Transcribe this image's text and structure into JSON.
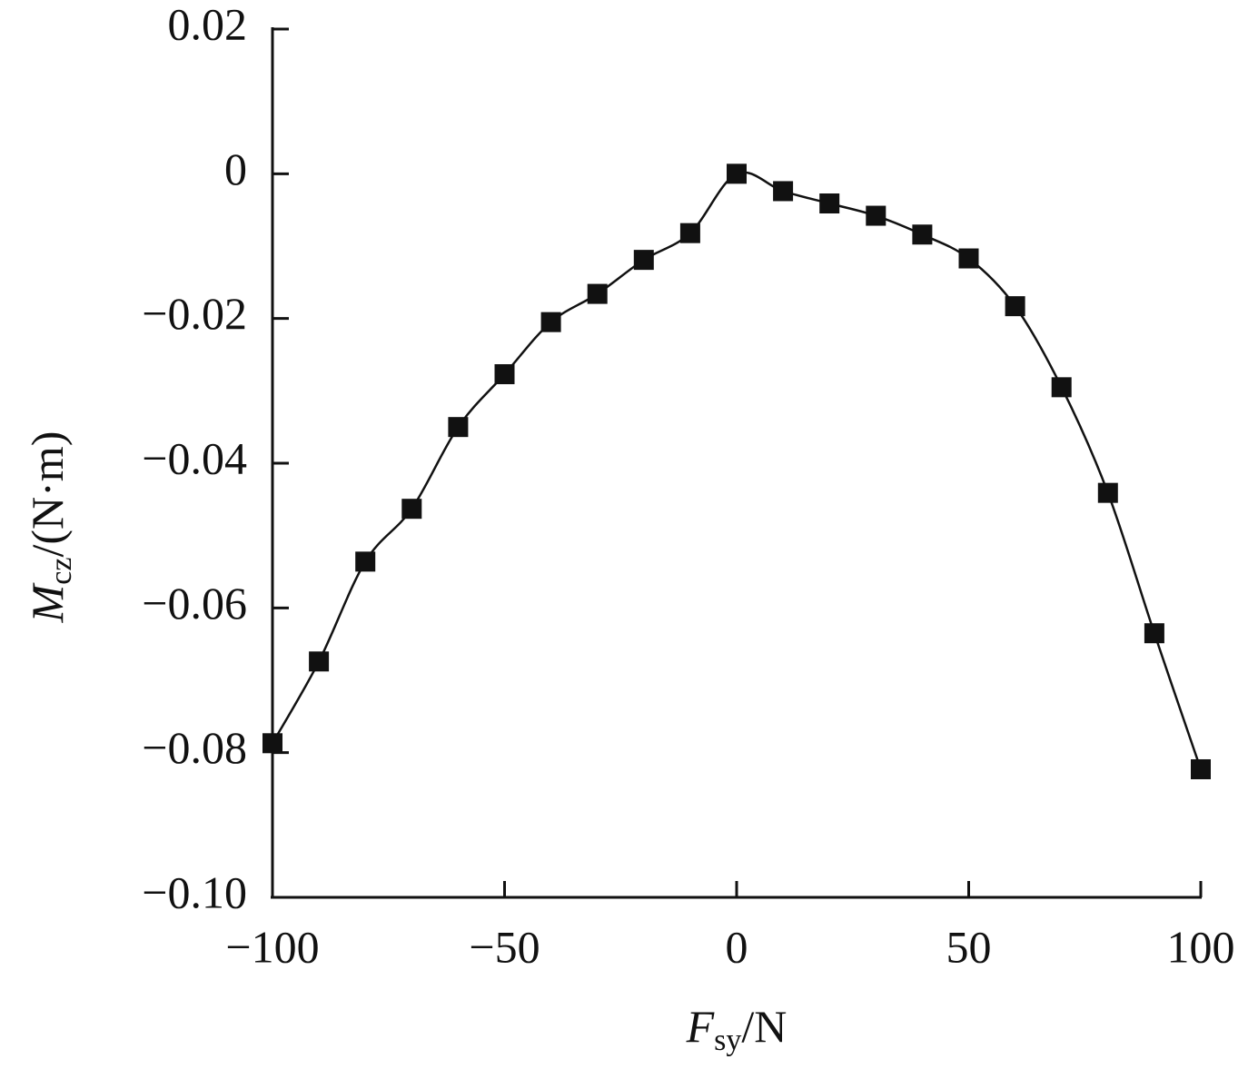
{
  "chart_data": {
    "type": "line",
    "xlabel_parts": [
      "F",
      "sy",
      "/N"
    ],
    "ylabel_parts": [
      "M",
      "cz",
      "/(N·m)"
    ],
    "x": [
      -100,
      -90,
      -80,
      -70,
      -60,
      -50,
      -40,
      -30,
      -20,
      -10,
      0,
      10,
      20,
      30,
      40,
      50,
      60,
      70,
      80,
      90,
      100
    ],
    "series": [
      {
        "color": "#111111",
        "marker": "square",
        "values": [
          -0.0787,
          -0.0674,
          -0.0536,
          -0.0463,
          -0.035,
          -0.0277,
          -0.0205,
          -0.0166,
          -0.0119,
          -0.0082,
          0,
          -0.0024,
          -0.0041,
          -0.0058,
          -0.0084,
          -0.0117,
          -0.0183,
          -0.0295,
          -0.0441,
          -0.0635,
          -0.0823
        ]
      }
    ],
    "xlim": [
      -100,
      100
    ],
    "ylim": [
      -0.1,
      0.02
    ],
    "xticks": [
      {
        "value": -100,
        "label": "−100"
      },
      {
        "value": -50,
        "label": "−50"
      },
      0,
      50,
      100
    ],
    "yticks": [
      {
        "value": -0.1,
        "label": "−0.10"
      },
      {
        "value": -0.08,
        "label": "−0.08"
      },
      {
        "value": -0.06,
        "label": "−0.06"
      },
      {
        "value": -0.04,
        "label": "−0.04"
      },
      {
        "value": -0.02,
        "label": "−0.02"
      },
      0,
      0.02
    ],
    "grid": false
  }
}
